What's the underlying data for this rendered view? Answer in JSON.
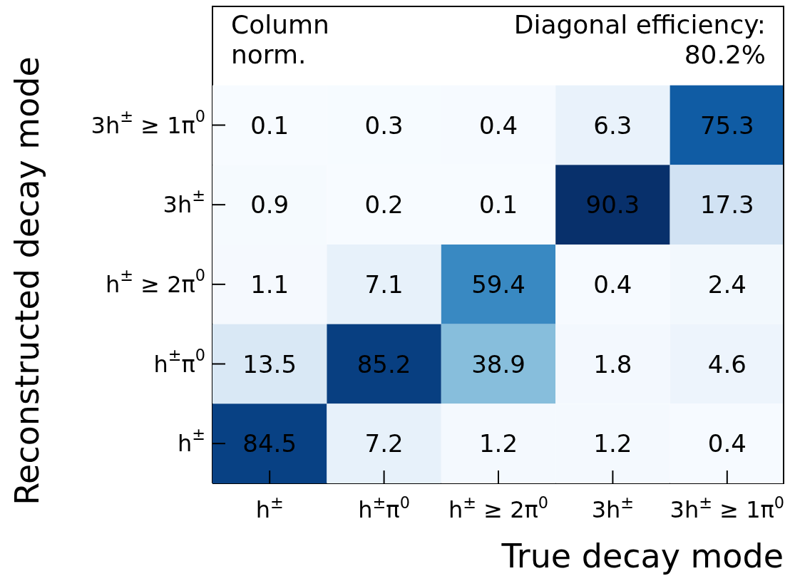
{
  "chart_data": {
    "type": "heatmap",
    "xlabel": "True decay mode",
    "ylabel": "Reconstructed decay mode",
    "categories": [
      "h$^{±}$",
      "h$^{±}$π$^{0}$",
      "h$^{±}$ ≥ 2π$^{0}$",
      "3h$^{±}$",
      "3h$^{±}$ ≥ 1π$^{0}$"
    ],
    "y_categories": [
      "3h$^{±}$ ≥ 1π$^{0}$",
      "3h$^{±}$",
      "h$^{±}$ ≥ 2π$^{0}$",
      "h$^{±}$π$^{0}$",
      "h$^{±}$"
    ],
    "cells": [
      [
        0.1,
        0.3,
        0.4,
        6.3,
        75.3
      ],
      [
        0.9,
        0.2,
        0.1,
        90.3,
        17.3
      ],
      [
        1.1,
        7.1,
        59.4,
        0.4,
        2.4
      ],
      [
        13.5,
        85.2,
        38.9,
        1.8,
        4.6
      ],
      [
        84.5,
        7.2,
        1.2,
        1.2,
        0.4
      ]
    ],
    "data_labels": true,
    "annotations": [
      "Column norm.",
      "Diagonal efficiency: 80.2%"
    ]
  }
}
